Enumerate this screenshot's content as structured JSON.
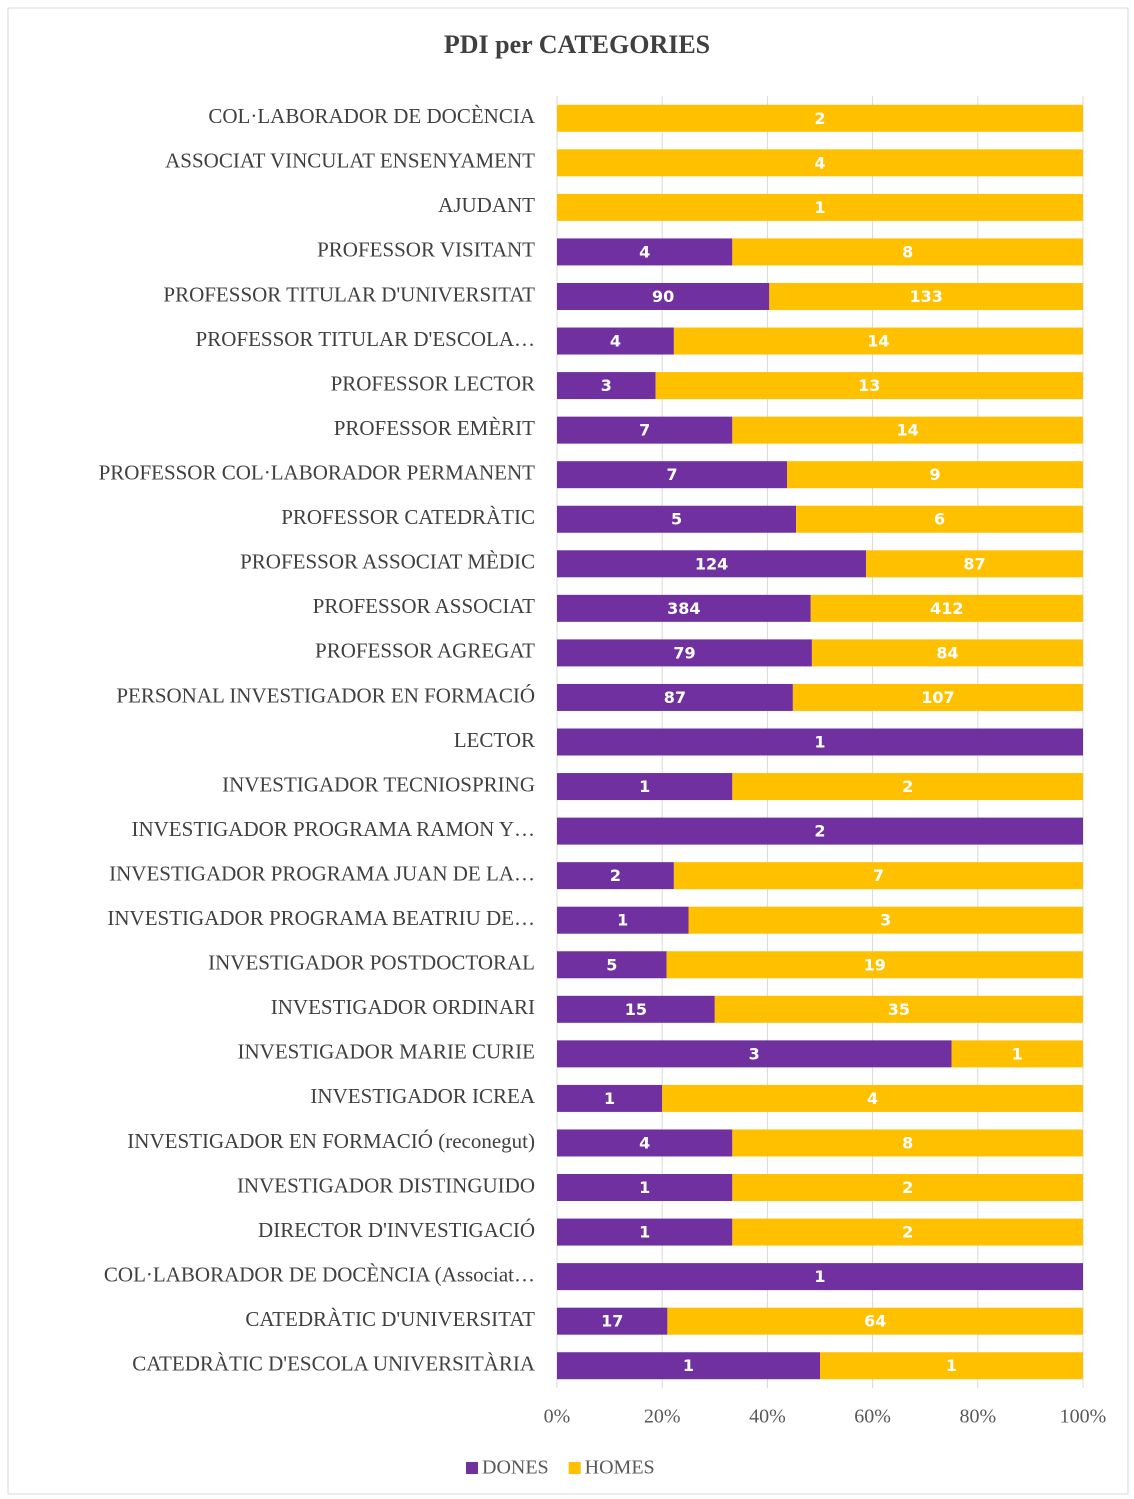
{
  "chart_data": {
    "type": "bar",
    "orientation": "horizontal",
    "stacking": "percent",
    "title": "PDI per CATEGORIES",
    "categories": [
      "COL·LABORADOR DE DOCÈNCIA",
      "ASSOCIAT VINCULAT ENSENYAMENT",
      "AJUDANT",
      "PROFESSOR VISITANT",
      "PROFESSOR TITULAR D'UNIVERSITAT",
      "PROFESSOR TITULAR D'ESCOLA…",
      "PROFESSOR LECTOR",
      "PROFESSOR EMÈRIT",
      "PROFESSOR COL·LABORADOR PERMANENT",
      "PROFESSOR CATEDRÀTIC",
      "PROFESSOR ASSOCIAT MÈDIC",
      "PROFESSOR ASSOCIAT",
      "PROFESSOR AGREGAT",
      "PERSONAL INVESTIGADOR EN FORMACIÓ",
      "LECTOR",
      "INVESTIGADOR TECNIOSPRING",
      "INVESTIGADOR PROGRAMA RAMON Y…",
      "INVESTIGADOR PROGRAMA JUAN DE LA…",
      "INVESTIGADOR PROGRAMA BEATRIU DE…",
      "INVESTIGADOR POSTDOCTORAL",
      "INVESTIGADOR ORDINARI",
      "INVESTIGADOR MARIE CURIE",
      "INVESTIGADOR ICREA",
      "INVESTIGADOR EN FORMACIÓ (reconegut)",
      "INVESTIGADOR DISTINGUIDO",
      "DIRECTOR D'INVESTIGACIÓ",
      "COL·LABORADOR DE DOCÈNCIA (Associat…",
      "CATEDRÀTIC D'UNIVERSITAT",
      "CATEDRÀTIC D'ESCOLA UNIVERSITÀRIA"
    ],
    "series": [
      {
        "name": "DONES",
        "color": "#7030a0",
        "values": [
          null,
          null,
          null,
          4,
          90,
          4,
          3,
          7,
          7,
          5,
          124,
          384,
          79,
          87,
          1,
          1,
          2,
          2,
          1,
          5,
          15,
          3,
          1,
          4,
          1,
          1,
          1,
          17,
          1
        ]
      },
      {
        "name": "HOMES",
        "color": "#ffc000",
        "values": [
          2,
          4,
          1,
          8,
          133,
          14,
          13,
          14,
          9,
          6,
          87,
          412,
          84,
          107,
          null,
          2,
          null,
          7,
          3,
          19,
          35,
          1,
          4,
          8,
          2,
          2,
          null,
          64,
          1
        ]
      }
    ],
    "xlim": [
      0,
      100
    ],
    "xticks": [
      {
        "value": 0,
        "label": "0%"
      },
      {
        "value": 20,
        "label": "20%"
      },
      {
        "value": 40,
        "label": "40%"
      },
      {
        "value": 60,
        "label": "60%"
      },
      {
        "value": 80,
        "label": "80%"
      },
      {
        "value": 100,
        "label": "100%"
      }
    ],
    "grid": true,
    "legend": "bottom"
  }
}
